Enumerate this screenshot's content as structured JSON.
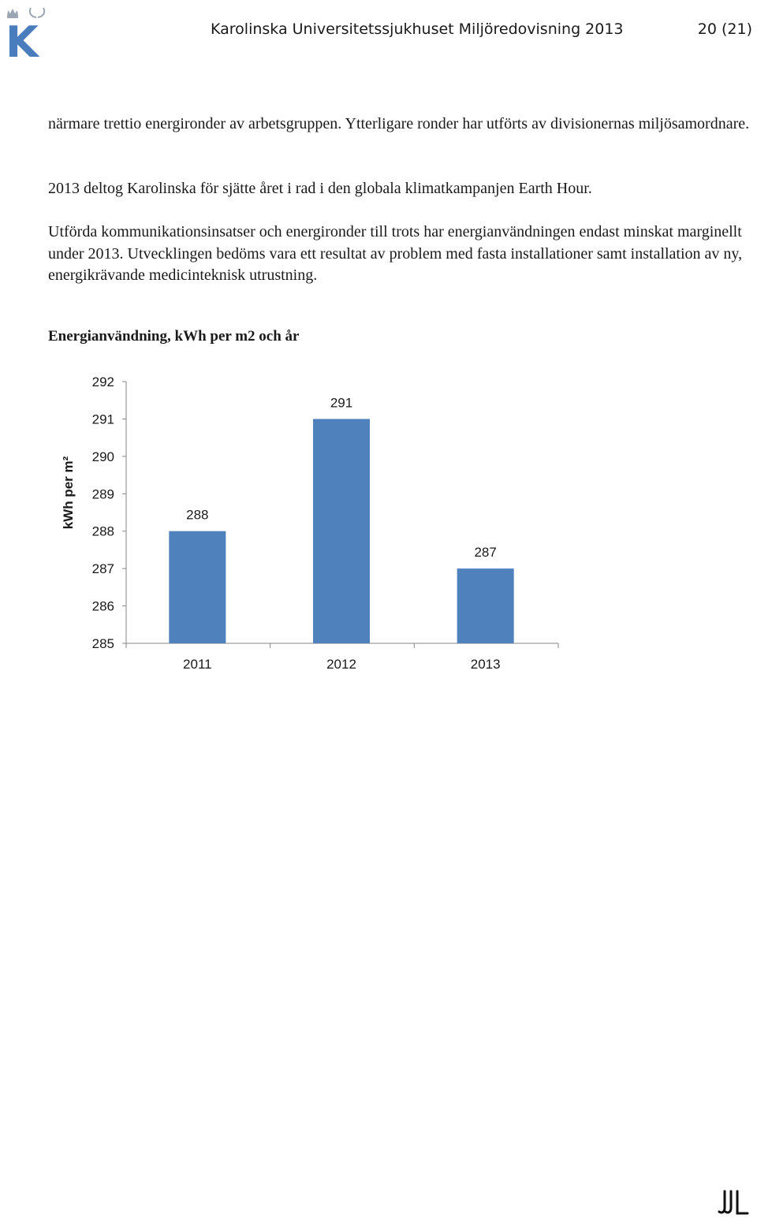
{
  "header": {
    "title": "Karolinska Universitetssjukhuset Miljöredovisning 2013",
    "page": "20 (21)",
    "logo_letter": "K",
    "brand_color": "#4a7dbe"
  },
  "content": {
    "paragraphs": [
      "närmare trettio energironder av arbetsgruppen. Ytterligare ronder har utförts av divisionernas miljösamordnare.",
      "2013 deltog Karolinska för sjätte året i rad i den globala klimatkampanjen Earth Hour.",
      "Utförda kommunikationsinsatser och energironder till trots har energianvändningen endast minskat marginellt under 2013. Utvecklingen bedöms vara ett resultat av problem med fasta installationer samt installation av ny, energikrävande medicinteknisk utrustning."
    ],
    "chart_heading": "Energianvändning, kWh per m2 och år"
  },
  "chart_data": {
    "type": "bar",
    "categories": [
      "2011",
      "2012",
      "2013"
    ],
    "values": [
      288,
      291,
      287
    ],
    "data_labels": [
      "288",
      "291",
      "287"
    ],
    "ylabel": "kWh per m²",
    "ylim": [
      285,
      292
    ],
    "yticks": [
      285,
      286,
      287,
      288,
      289,
      290,
      291,
      292
    ],
    "grid": false,
    "legend": "none",
    "bar_color": "#4f81bd"
  }
}
